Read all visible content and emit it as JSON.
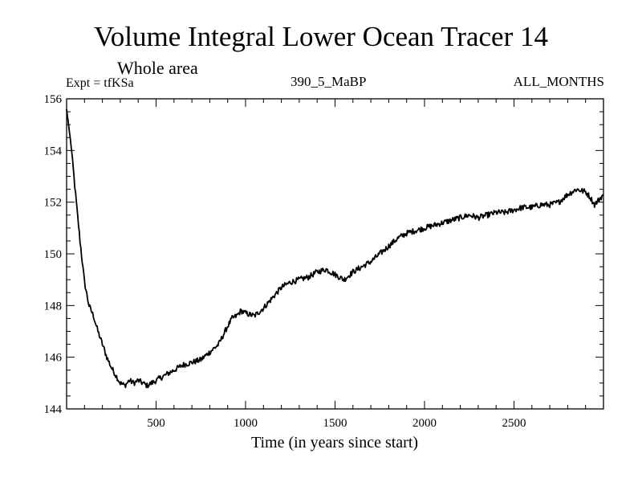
{
  "chart_data": {
    "type": "line",
    "title": "Volume Integral Lower Ocean Tracer 14",
    "subtitle": "Whole area",
    "annotations": {
      "left": "Expt = tfKSa",
      "center": "390_5_MaBP",
      "right": "ALL_MONTHS"
    },
    "xlabel": "Time (in years since start)",
    "ylabel": "",
    "xlim": [
      0,
      3000
    ],
    "ylim": [
      144,
      156
    ],
    "xticks": [
      500,
      1000,
      1500,
      2000,
      2500
    ],
    "yticks": [
      144,
      146,
      148,
      150,
      152,
      154,
      156
    ],
    "grid": false,
    "series": [
      {
        "name": "Lower Ocean Tracer 14",
        "color": "#000000",
        "x": [
          0,
          25,
          50,
          75,
          100,
          125,
          150,
          175,
          200,
          225,
          250,
          275,
          300,
          325,
          350,
          375,
          400,
          425,
          450,
          475,
          500,
          550,
          600,
          650,
          700,
          750,
          800,
          850,
          900,
          925,
          950,
          975,
          1000,
          1050,
          1100,
          1150,
          1200,
          1250,
          1300,
          1350,
          1400,
          1450,
          1500,
          1550,
          1600,
          1650,
          1700,
          1750,
          1800,
          1850,
          1900,
          1950,
          2000,
          2050,
          2100,
          2150,
          2200,
          2250,
          2300,
          2350,
          2400,
          2450,
          2500,
          2550,
          2600,
          2650,
          2700,
          2750,
          2800,
          2850,
          2900,
          2925,
          2950,
          2975,
          3000
        ],
        "values": [
          155.6,
          154.2,
          152.3,
          150.5,
          148.9,
          148.0,
          147.6,
          147.0,
          146.5,
          146.0,
          145.6,
          145.3,
          145.0,
          144.9,
          145.1,
          145.0,
          145.1,
          145.0,
          144.9,
          145.0,
          145.1,
          145.3,
          145.5,
          145.7,
          145.8,
          145.9,
          146.2,
          146.5,
          147.2,
          147.5,
          147.6,
          147.8,
          147.7,
          147.6,
          147.9,
          148.3,
          148.7,
          148.9,
          149.0,
          149.1,
          149.3,
          149.4,
          149.2,
          149.0,
          149.3,
          149.5,
          149.7,
          150.0,
          150.3,
          150.6,
          150.8,
          150.9,
          151.0,
          151.1,
          151.2,
          151.3,
          151.4,
          151.5,
          151.4,
          151.5,
          151.6,
          151.6,
          151.7,
          151.8,
          151.8,
          151.9,
          151.9,
          152.0,
          152.3,
          152.5,
          152.4,
          152.2,
          151.9,
          152.1,
          152.3
        ]
      }
    ]
  }
}
